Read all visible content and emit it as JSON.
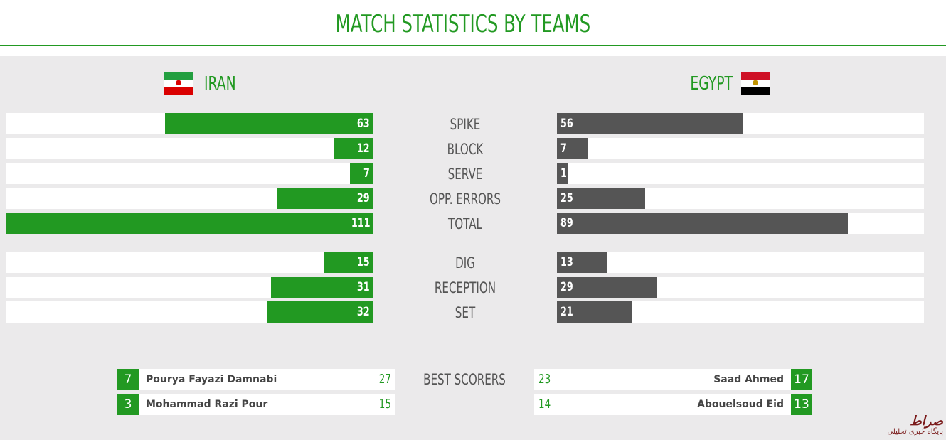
{
  "header": {
    "title": "MATCH STATISTICS BY TEAMS"
  },
  "teams": {
    "home": {
      "name": "IRAN",
      "flag_colors": [
        "#239f40",
        "#ffffff",
        "#da0000"
      ]
    },
    "away": {
      "name": "EGYPT",
      "flag_colors": [
        "#ce1126",
        "#ffffff",
        "#000000"
      ]
    }
  },
  "colors": {
    "home_bar": "#229922",
    "away_bar": "#555555"
  },
  "stats_max": 111,
  "stats": [
    {
      "label": "SPIKE",
      "home": 63,
      "away": 56
    },
    {
      "label": "BLOCK",
      "home": 12,
      "away": 7
    },
    {
      "label": "SERVE",
      "home": 7,
      "away": 1
    },
    {
      "label": "OPP. ERRORS",
      "home": 29,
      "away": 25
    },
    {
      "label": "TOTAL",
      "home": 111,
      "away": 89
    },
    {
      "label": "DIG",
      "home": 15,
      "away": 13
    },
    {
      "label": "RECEPTION",
      "home": 31,
      "away": 29
    },
    {
      "label": "SET",
      "home": 32,
      "away": 21
    }
  ],
  "best_scorers": {
    "label": "BEST SCORERS",
    "home": [
      {
        "number": "7",
        "name": "Pourya Fayazi Damnabi",
        "points": "27"
      },
      {
        "number": "3",
        "name": "Mohammad Razi Pour",
        "points": "15"
      }
    ],
    "away": [
      {
        "number": "17",
        "name": "Saad Ahmed",
        "points": "23"
      },
      {
        "number": "13",
        "name": "Abouelsoud Eid",
        "points": "14"
      }
    ]
  },
  "watermark": {
    "logo_text": "صراط",
    "caption": "پایگاه خبری تحلیلی"
  }
}
